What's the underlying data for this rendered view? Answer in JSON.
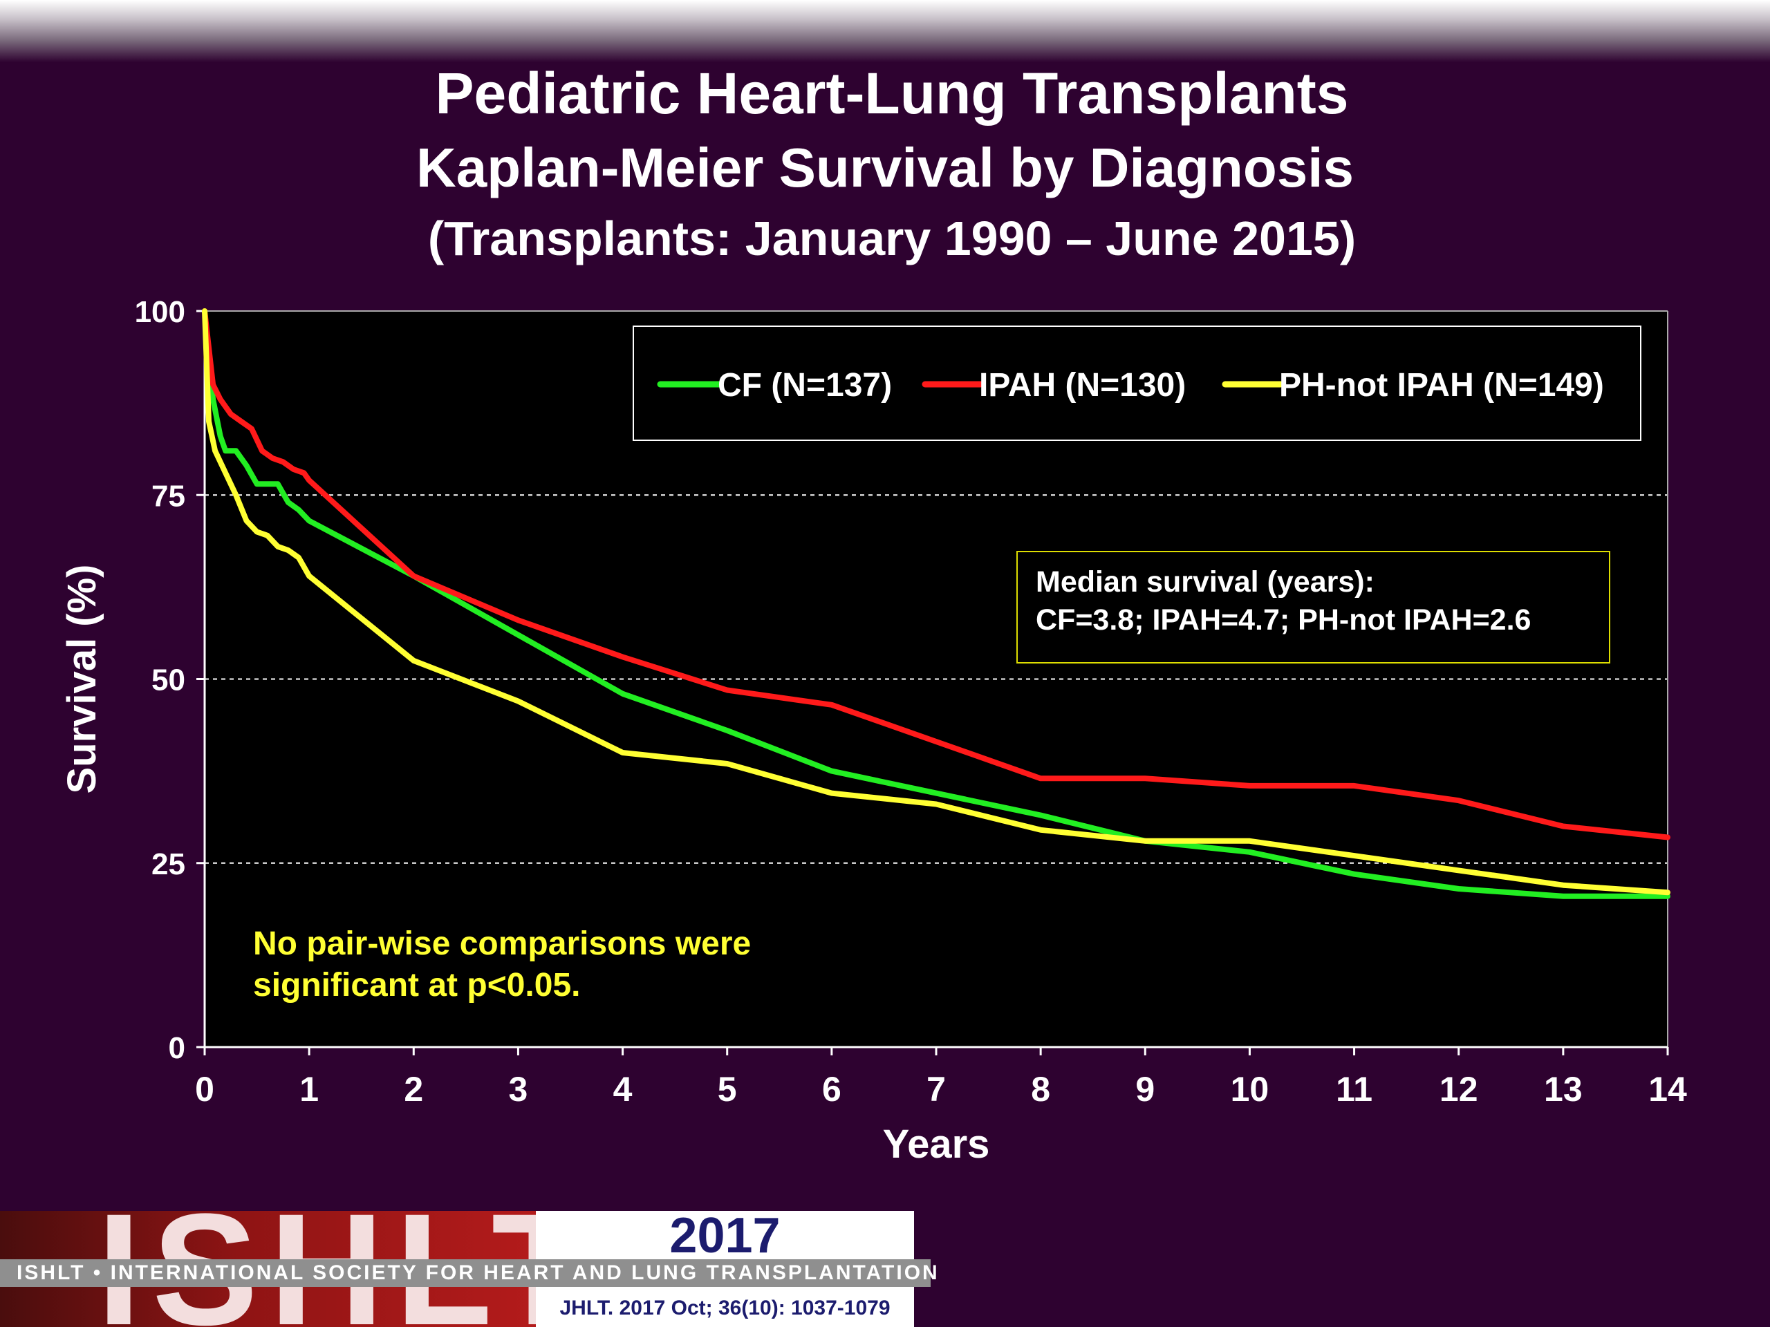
{
  "title": {
    "line1": "Pediatric Heart-Lung Transplants",
    "line2": "Kaplan-Meier Survival by Diagnosis",
    "line3": "(Transplants: January 1990 – June 2015)"
  },
  "chart_data": {
    "type": "line",
    "xlabel": "Years",
    "ylabel": "Survival (%)",
    "xlim": [
      0,
      14
    ],
    "ylim": [
      0,
      100
    ],
    "xticks": [
      0,
      1,
      2,
      3,
      4,
      5,
      6,
      7,
      8,
      9,
      10,
      11,
      12,
      13,
      14
    ],
    "yticks": [
      0,
      25,
      50,
      75,
      100
    ],
    "grid": "horizontal-dashed",
    "legend_placement": "top-right",
    "colors": {
      "plot_bg": "#000000",
      "text": "#ffffff",
      "grid": "#ffffff"
    },
    "series": [
      {
        "name": "CF (N=137)",
        "color": "#22ee22",
        "x": [
          0,
          0.08,
          0.15,
          0.2,
          0.3,
          0.4,
          0.5,
          0.6,
          0.7,
          0.8,
          0.9,
          1,
          2,
          3,
          4,
          5,
          6,
          7,
          8,
          9,
          10,
          11,
          12,
          13,
          14
        ],
        "y": [
          100,
          88,
          83,
          81,
          81,
          79,
          76.5,
          76.5,
          76.5,
          74,
          73,
          71.5,
          64,
          56,
          48,
          43,
          37.5,
          34.5,
          31.5,
          28,
          26.5,
          23.5,
          21.5,
          20.5,
          20.5
        ]
      },
      {
        "name": "IPAH (N=130)",
        "color": "#ff1a1a",
        "x": [
          0,
          0.08,
          0.15,
          0.25,
          0.35,
          0.45,
          0.55,
          0.65,
          0.75,
          0.85,
          0.95,
          1,
          2,
          3,
          4,
          5,
          6,
          7,
          8,
          9,
          10,
          11,
          12,
          13,
          14
        ],
        "y": [
          100,
          90,
          88,
          86,
          85,
          84,
          81,
          80,
          79.5,
          78.5,
          78,
          77,
          64,
          58,
          53,
          48.5,
          46.5,
          41.5,
          36.5,
          36.5,
          35.5,
          35.5,
          33.5,
          30,
          28.5
        ]
      },
      {
        "name": "PH-not IPAH (N=149)",
        "color": "#ffff33",
        "x": [
          0,
          0.04,
          0.1,
          0.2,
          0.3,
          0.4,
          0.5,
          0.6,
          0.7,
          0.8,
          0.9,
          1,
          2,
          3,
          4,
          5,
          6,
          7,
          8,
          9,
          10,
          11,
          12,
          13,
          14
        ],
        "y": [
          100,
          85,
          81,
          78,
          75,
          71.5,
          70,
          69.5,
          68,
          67.5,
          66.5,
          64,
          52.5,
          47,
          40,
          38.5,
          34.5,
          33,
          29.5,
          28,
          28,
          26,
          24,
          22,
          21
        ]
      }
    ],
    "annotations": [
      {
        "id": "median-box",
        "lines": [
          "Median survival (years):",
          "CF=3.8; IPAH=4.7; PH-not IPAH=2.6"
        ],
        "border_color": "#dddd00"
      },
      {
        "id": "significance-note",
        "lines": [
          "No pair-wise comparisons were",
          "significant at p<0.05."
        ],
        "color": "#ffff33"
      }
    ]
  },
  "footer": {
    "logo_text": "ISHLT",
    "society": "ISHLT • INTERNATIONAL SOCIETY FOR HEART AND LUNG TRANSPLANTATION",
    "year": "2017",
    "citation": "JHLT. 2017 Oct; 36(10): 1037-1079"
  }
}
